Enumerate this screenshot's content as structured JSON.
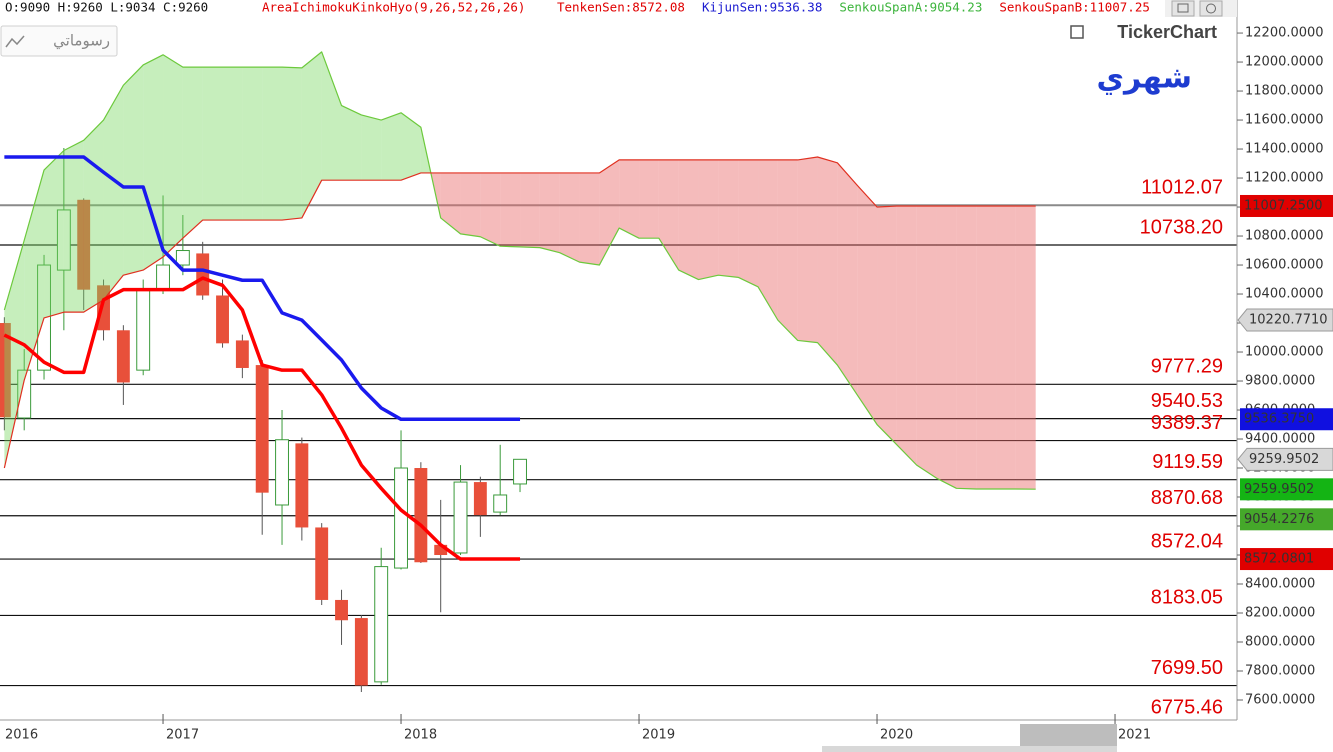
{
  "header": {
    "ohlc": "O:9090  H:9260  L:9034  C:9260",
    "indicator": {
      "text": "AreaIchimokuKinkoHyo(9,26,52,26,26)",
      "color": "#e00000"
    },
    "legend": [
      {
        "text": "TenkenSen:8572.08",
        "color": "#e00000"
      },
      {
        "text": "KijunSen:9536.38",
        "color": "#1a1ad0"
      },
      {
        "text": "SenkouSpanA:9054.23",
        "color": "#3cb43c"
      },
      {
        "text": "SenkouSpanB:11007.25",
        "color": "#e00000"
      }
    ]
  },
  "button_label": "رسوماتي",
  "logo": "TickerChart",
  "period": "شهري",
  "chart_data": {
    "type": "candlestick",
    "xlim": [
      3.78,
      66.15
    ],
    "ylim": [
      7462,
      12290
    ],
    "xticks": [
      {
        "value": 0,
        "label": "2016"
      },
      {
        "value": 12,
        "label": "2017"
      },
      {
        "value": 24,
        "label": "2018"
      },
      {
        "value": 36,
        "label": "2019"
      },
      {
        "value": 48,
        "label": "2020"
      },
      {
        "value": 60,
        "label": "2021"
      }
    ],
    "yticks": [
      {
        "value": 7600,
        "label": "7600.0000"
      },
      {
        "value": 7800,
        "label": "7800.0000"
      },
      {
        "value": 8000,
        "label": "8000.0000"
      },
      {
        "value": 8200,
        "label": "8200.0000"
      },
      {
        "value": 8400,
        "label": "8400.0000"
      },
      {
        "value": 8600,
        "label": "8600.0000"
      },
      {
        "value": 8800,
        "label": "8800.0000"
      },
      {
        "value": 9000,
        "label": "9000.0000"
      },
      {
        "value": 9200,
        "label": "9200.0000"
      },
      {
        "value": 9400,
        "label": "9400.0000"
      },
      {
        "value": 9600,
        "label": "9600.0000"
      },
      {
        "value": 9800,
        "label": "9800.0000"
      },
      {
        "value": 10000,
        "label": "10000.0000"
      },
      {
        "value": 10200,
        "label": "10200.0000"
      },
      {
        "value": 10400,
        "label": "10400.0000"
      },
      {
        "value": 10600,
        "label": "10600.0000"
      },
      {
        "value": 10800,
        "label": "10800.0000"
      },
      {
        "value": 11000,
        "label": "11000.0000"
      },
      {
        "value": 11200,
        "label": "11200.0000"
      },
      {
        "value": 11400,
        "label": "11400.0000"
      },
      {
        "value": 11600,
        "label": "11600.0000"
      },
      {
        "value": 11800,
        "label": "11800.0000"
      },
      {
        "value": 12000,
        "label": "12000.0000"
      },
      {
        "value": 12200,
        "label": "12200.0000"
      }
    ],
    "candles": {
      "up_color": "#3a9a3a",
      "down_color": "#e8503a",
      "x": [
        4,
        5,
        6,
        7,
        8,
        9,
        10,
        11,
        12,
        13,
        14,
        15,
        16,
        17,
        18,
        19,
        20,
        21,
        22,
        23,
        24,
        25,
        26,
        27,
        28,
        29,
        30
      ],
      "open": [
        10200,
        9545,
        9875,
        10565,
        11050,
        10460,
        10150,
        9875,
        10430,
        10600,
        10680,
        10390,
        10080,
        9910,
        8945,
        9370,
        8790,
        8290,
        8165,
        7725,
        8510,
        9200,
        8670,
        8614,
        9103,
        8896,
        9090
      ],
      "high": [
        10240,
        10020,
        10670,
        11407,
        11060,
        10500,
        10185,
        10500,
        11080,
        10945,
        10760,
        10500,
        10120,
        9945,
        9600,
        9410,
        8820,
        8360,
        8185,
        8650,
        9460,
        9240,
        8980,
        9220,
        9140,
        9360,
        9260
      ],
      "low": [
        9460,
        9460,
        9810,
        10150,
        10290,
        10080,
        9635,
        9840,
        10400,
        10530,
        10360,
        10030,
        9820,
        8740,
        8670,
        8700,
        8255,
        7980,
        7655,
        7705,
        8500,
        8545,
        8205,
        8600,
        8725,
        8875,
        9034
      ],
      "close": [
        9550,
        9875,
        10600,
        10980,
        10430,
        10150,
        9790,
        10430,
        10600,
        10700,
        10390,
        10060,
        9890,
        9030,
        9395,
        8790,
        8290,
        8150,
        7700,
        8520,
        9200,
        8550,
        8600,
        9103,
        8875,
        9014,
        9260
      ]
    },
    "x": [
      4,
      5,
      6,
      7,
      8,
      9,
      10,
      11,
      12,
      13,
      14,
      15,
      16,
      17,
      18,
      19,
      20,
      21,
      22,
      23,
      24,
      25,
      26,
      27,
      28,
      29,
      30,
      31,
      32,
      33,
      34,
      35,
      36,
      37,
      38,
      39,
      40,
      41,
      42,
      43,
      44,
      45,
      46,
      47,
      48,
      49,
      50,
      51,
      52,
      53,
      54,
      55,
      56
    ],
    "cloud_colors": {
      "bull": "rgba(120,215,95,0.42)",
      "bear": "rgba(232,105,105,0.45)"
    },
    "series": [
      {
        "color": "#ff0000",
        "width": 3.5,
        "values": [
          10117,
          10050,
          9930,
          9860,
          9860,
          10360,
          10430,
          10430,
          10430,
          10430,
          10510,
          10460,
          10290,
          9910,
          9875,
          9875,
          9705,
          9475,
          9220,
          9060,
          8910,
          8805,
          8670,
          8572,
          8572,
          8572,
          8572,
          null,
          null,
          null,
          null,
          null,
          null,
          null,
          null,
          null,
          null,
          null,
          null,
          null,
          null,
          null,
          null,
          null,
          null,
          null,
          null,
          null,
          null,
          null,
          null,
          null,
          null
        ]
      },
      {
        "color": "#1a1aee",
        "width": 3.5,
        "values": [
          11345,
          11345,
          11345,
          11345,
          11345,
          11240,
          11138,
          11138,
          10703,
          10565,
          10565,
          10530,
          10495,
          10495,
          10270,
          10220,
          10083,
          9945,
          9752,
          9614,
          9536,
          9536,
          9536,
          9536,
          9536,
          9536,
          9536,
          null,
          null,
          null,
          null,
          null,
          null,
          null,
          null,
          null,
          null,
          null,
          null,
          null,
          null,
          null,
          null,
          null,
          null,
          null,
          null,
          null,
          null,
          null,
          null,
          null,
          null
        ]
      },
      {
        "color": "#6cc93c",
        "width": 1.2,
        "values": [
          10290,
          10770,
          11255,
          11390,
          11460,
          11600,
          11840,
          11980,
          12050,
          11965,
          11965,
          11965,
          11965,
          11965,
          11965,
          11960,
          12070,
          11700,
          11635,
          11600,
          11650,
          11550,
          10925,
          10815,
          10795,
          10730,
          10725,
          10720,
          10685,
          10620,
          10600,
          10855,
          10785,
          10785,
          10565,
          10500,
          10530,
          10515,
          10450,
          10220,
          10080,
          10065,
          9910,
          9705,
          9500,
          9360,
          9220,
          9130,
          9060,
          9055,
          9055,
          9055,
          9054
        ]
      },
      {
        "color": "#e03020",
        "width": 1.2,
        "values": [
          9200,
          9805,
          10235,
          10275,
          10275,
          10360,
          10530,
          10565,
          10655,
          10785,
          10910,
          10910,
          10910,
          10910,
          10910,
          10925,
          11185,
          11185,
          11185,
          11185,
          11185,
          11235,
          11235,
          11235,
          11235,
          11235,
          11235,
          11235,
          11235,
          11235,
          11235,
          11325,
          11325,
          11325,
          11325,
          11325,
          11325,
          11325,
          11325,
          11325,
          11325,
          11345,
          11305,
          11150,
          11000,
          11007,
          11007,
          11007,
          11007,
          11007,
          11007,
          11007,
          11007
        ]
      }
    ],
    "levels_color": "#e00000",
    "levels": [
      {
        "value": 11012.07,
        "color": "#8a8a8a"
      },
      {
        "value": {
          "value": 10738.2,
          "label": "10738.20"
        },
        "color": "#111111"
      },
      {
        "value": 9777.29,
        "color": "#111111"
      },
      {
        "value": 9540.53,
        "color": "#111111"
      },
      {
        "value": 9389.37,
        "color": "#111111"
      },
      {
        "value": 9119.59,
        "color": "#111111"
      },
      {
        "value": 8870.68,
        "color": "#111111"
      },
      {
        "value": 8572.04,
        "color": "#111111"
      },
      {
        "value": 8183.05,
        "color": "#111111"
      },
      {
        "value": {
          "value": 7699.5,
          "label": "7699.50"
        },
        "color": "#111111"
      },
      {
        "value": 6775.46,
        "color": "#111111"
      }
    ],
    "price_tags": [
      {
        "value": 11007.25,
        "label": "11007.2500",
        "color": "#e00000",
        "style": "box"
      },
      {
        "value": 10220.771,
        "label": "10220.7710",
        "color": "#b8b8b8",
        "style": "arrow"
      },
      {
        "value": 9536.375,
        "label": "9536.3750",
        "color": "#1010e0",
        "style": "box"
      },
      {
        "value": 9259.9502,
        "label": "9259.9502",
        "color": "#b8b8b8",
        "style": "arrow"
      },
      {
        "value": 9259.9502,
        "label": "9259.9502",
        "color": "#14b414",
        "style": "box"
      },
      {
        "value": 9054.2276,
        "label": "9054.2276",
        "color": "#45a82a",
        "style": "box"
      },
      {
        "value": 8572.0801,
        "label": "8572.0801",
        "color": "#e00000",
        "style": "box"
      }
    ]
  }
}
